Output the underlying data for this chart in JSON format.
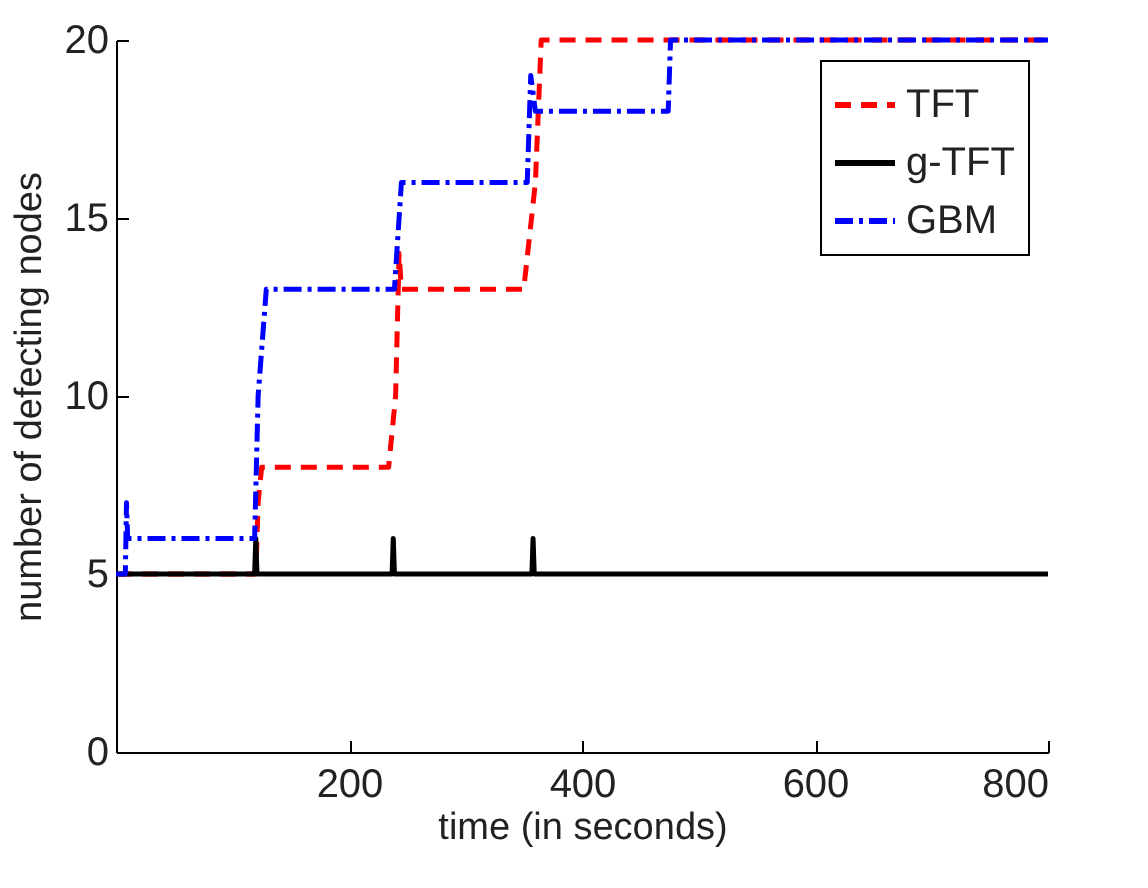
{
  "chart_data": {
    "type": "line",
    "xlabel": "time (in seconds)",
    "ylabel": "number of defecting nodes",
    "xlim": [
      0,
      800
    ],
    "xticks": [
      200,
      400,
      600,
      800
    ],
    "ylim": [
      0,
      20
    ],
    "yticks": [
      0,
      5,
      10,
      15,
      20
    ],
    "legend": "top right",
    "grid": false,
    "series": [
      {
        "name": "TFT",
        "color": "#ff0000",
        "line_style": "dashed",
        "x": [
          0,
          120,
          122,
          125,
          234,
          240,
          243,
          245,
          350,
          360,
          365,
          800
        ],
        "values": [
          5,
          5,
          7,
          8,
          8,
          10,
          14,
          13,
          13,
          16,
          20,
          20
        ]
      },
      {
        "name": "g-TFT",
        "color": "#000000",
        "line_style": "solid",
        "x": [
          0,
          119,
          120,
          121,
          237,
          238,
          239,
          357,
          358,
          359,
          800
        ],
        "values": [
          5,
          5,
          6,
          5,
          5,
          6,
          5,
          5,
          6,
          5,
          5
        ]
      },
      {
        "name": "GBM",
        "color": "#0000ff",
        "line_style": "dashdot",
        "x": [
          0,
          8,
          9,
          10,
          119,
          122,
          129,
          239,
          241,
          245,
          353,
          356,
          360,
          474,
          476,
          800
        ],
        "values": [
          5,
          5,
          7,
          6,
          6,
          10,
          13,
          13,
          14,
          16,
          16,
          19,
          18,
          18,
          20,
          20
        ]
      }
    ]
  }
}
